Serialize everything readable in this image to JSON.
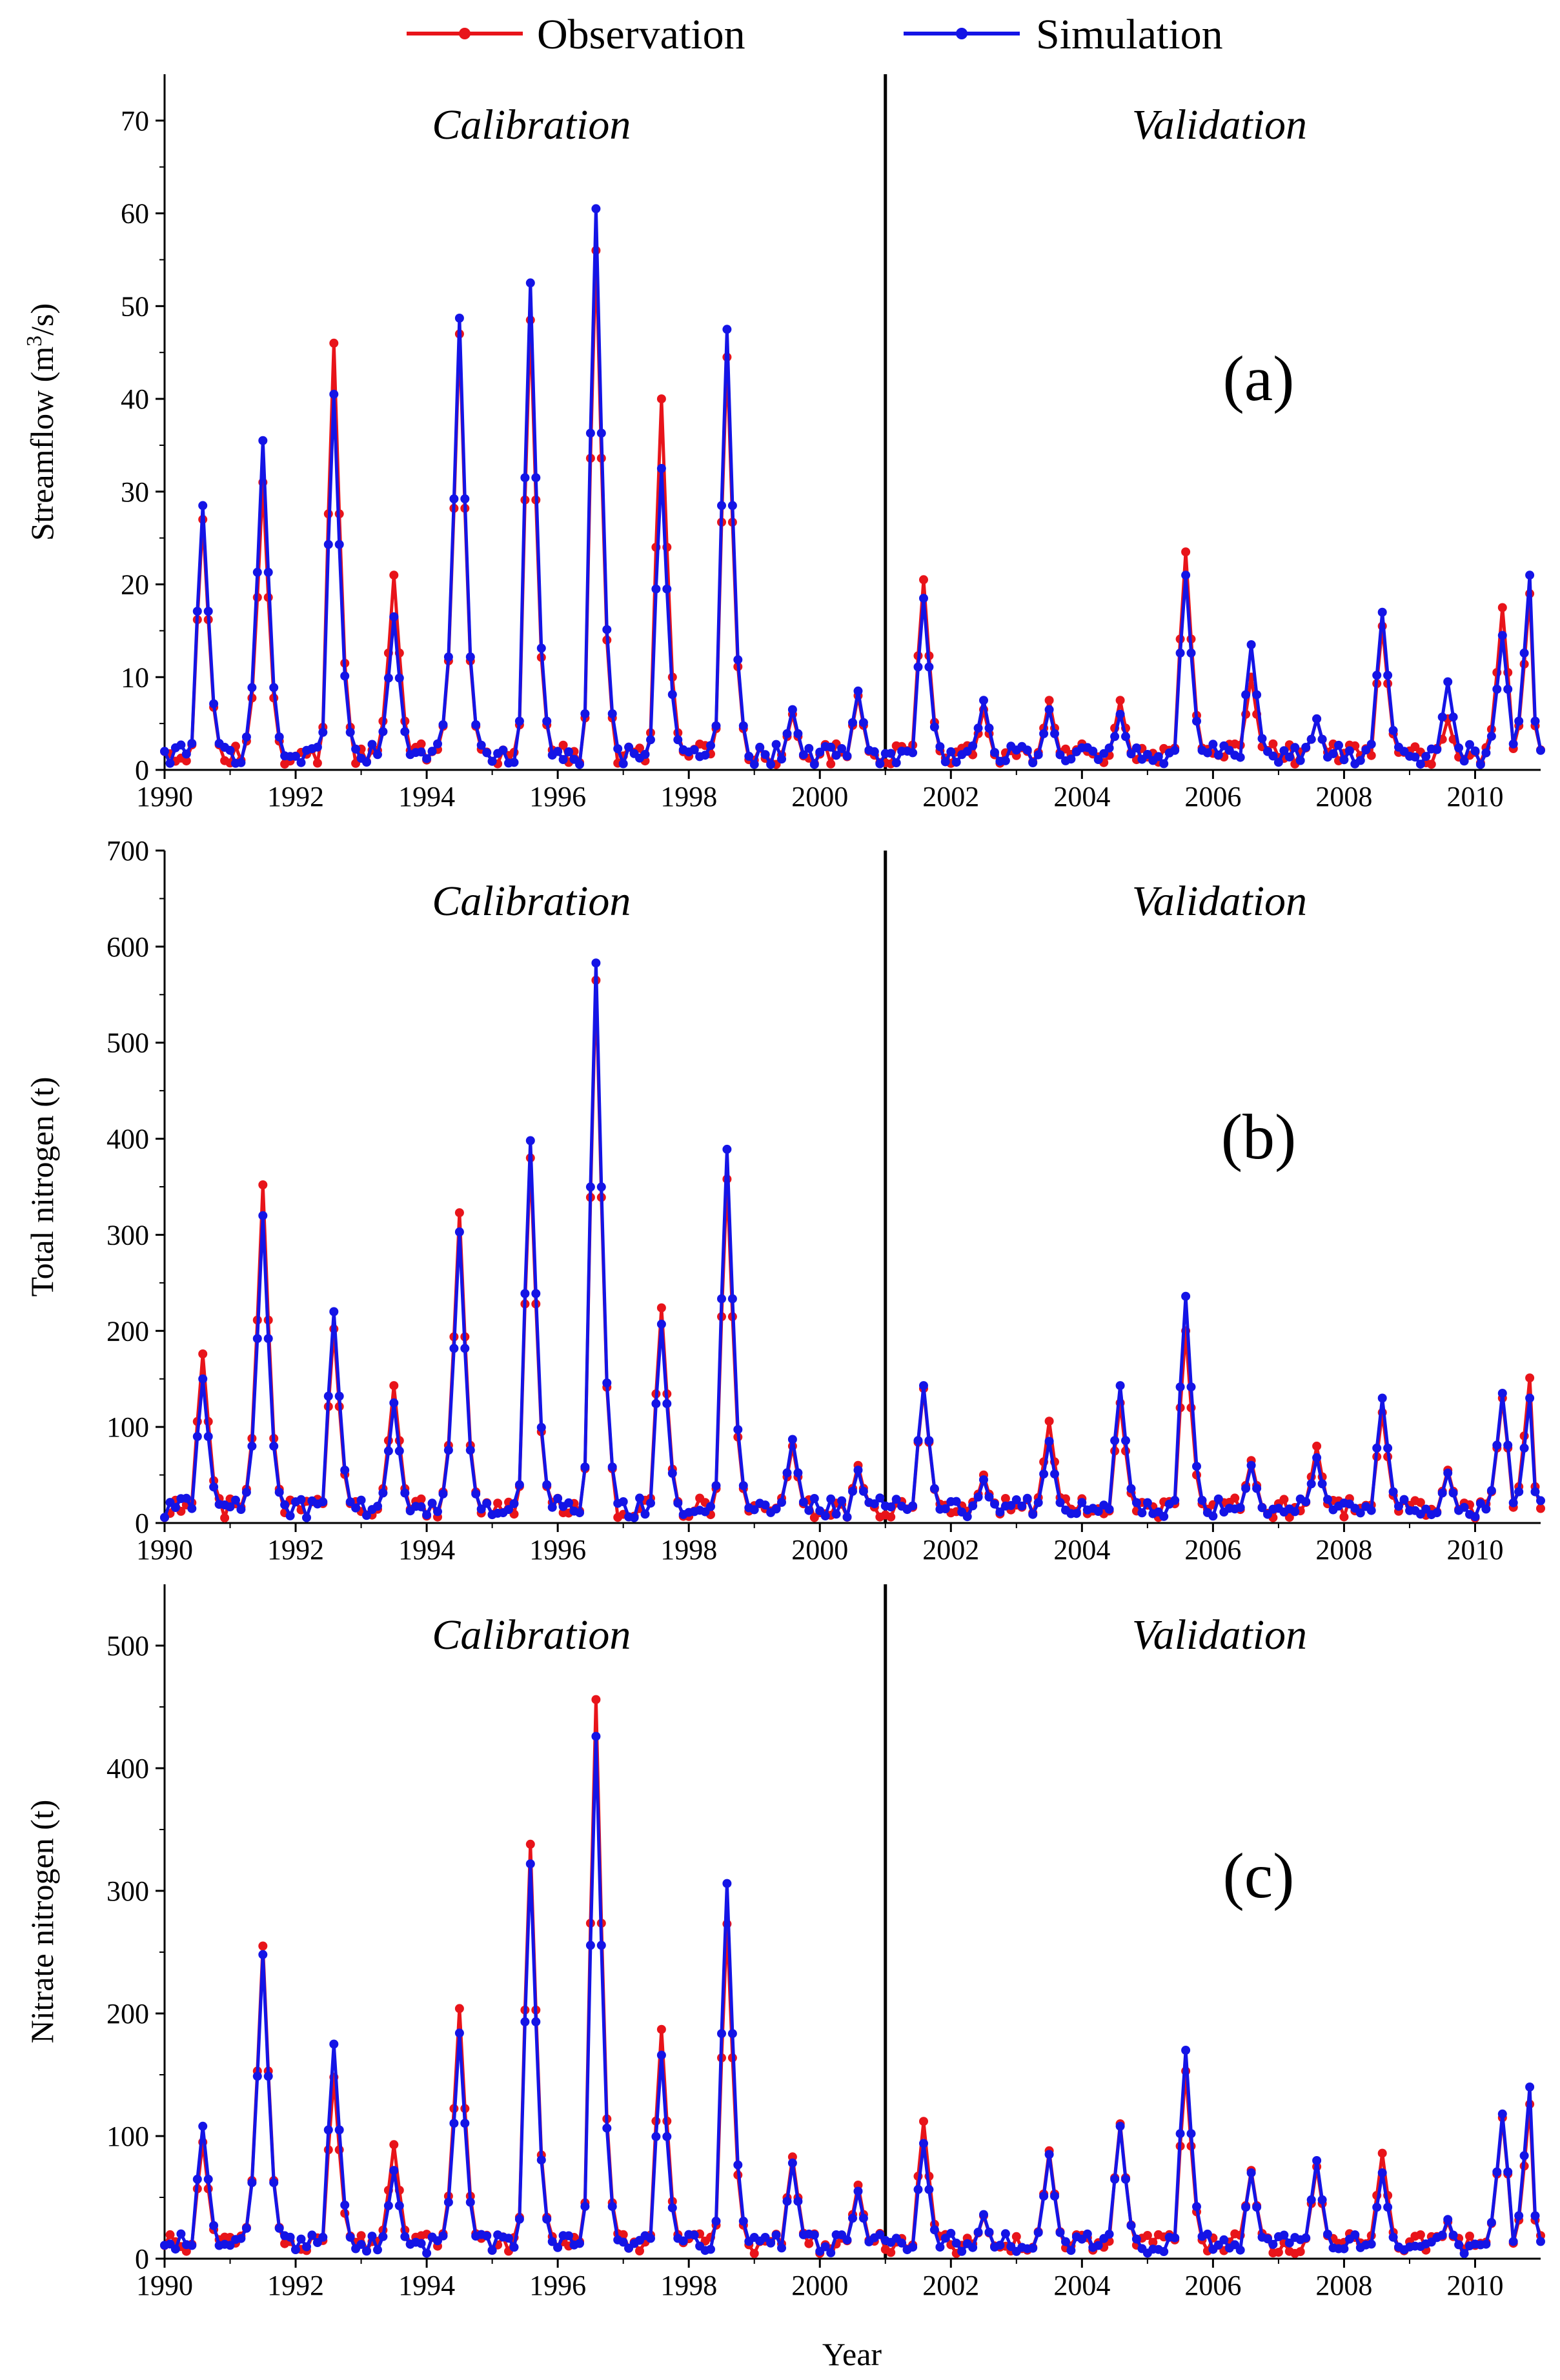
{
  "legend": {
    "observation": "Observation",
    "simulation": "Simulation"
  },
  "colors": {
    "observation": "#e8141a",
    "simulation": "#1414e6"
  },
  "x_axis_title": "Year",
  "chart_data": [
    {
      "type": "line",
      "panel": "(a)",
      "ylabel_main": "Streamflow (m",
      "ylabel_sup": "3",
      "ylabel_tail": "/s)",
      "ylim": [
        0,
        75
      ],
      "yticks": [
        0,
        10,
        20,
        30,
        40,
        50,
        60,
        70
      ],
      "xlim": [
        1990,
        2011
      ],
      "xticks": [
        1990,
        1992,
        1994,
        1996,
        1998,
        2000,
        2002,
        2004,
        2006,
        2008,
        2010
      ],
      "split_year": 2001,
      "period_labels": [
        "Calibration",
        "Validation"
      ],
      "series": [
        {
          "name": "Observation",
          "peaks": [
            [
              1990.6,
              27
            ],
            [
              1991.5,
              31
            ],
            [
              1992.6,
              46
            ],
            [
              1993.5,
              21
            ],
            [
              1994.5,
              47
            ],
            [
              1995.6,
              48.5
            ],
            [
              1996.6,
              56
            ],
            [
              1997.6,
              40
            ],
            [
              1998.6,
              44.5
            ],
            [
              1999.6,
              6
            ],
            [
              2000.6,
              8
            ],
            [
              2001.6,
              20.5
            ],
            [
              2002.5,
              6.5
            ],
            [
              2003.5,
              7.5
            ],
            [
              2004.6,
              7.5
            ],
            [
              2005.6,
              23.5
            ],
            [
              2006.6,
              10
            ],
            [
              2007.6,
              5.5
            ],
            [
              2008.6,
              15.5
            ],
            [
              2009.6,
              5.5
            ],
            [
              2010.4,
              17.5
            ],
            [
              2010.8,
              19
            ]
          ]
        },
        {
          "name": "Simulation",
          "peaks": [
            [
              1990.6,
              28.5
            ],
            [
              1991.5,
              35.5
            ],
            [
              1992.6,
              40.5
            ],
            [
              1993.5,
              16.5
            ],
            [
              1994.5,
              48.7
            ],
            [
              1995.6,
              52.5
            ],
            [
              1996.6,
              60.5
            ],
            [
              1997.6,
              32.5
            ],
            [
              1998.6,
              47.5
            ],
            [
              1999.6,
              6.5
            ],
            [
              2000.6,
              8.5
            ],
            [
              2001.6,
              18.5
            ],
            [
              2002.5,
              7.5
            ],
            [
              2003.5,
              6.5
            ],
            [
              2004.6,
              6
            ],
            [
              2005.6,
              21
            ],
            [
              2006.6,
              13.5
            ],
            [
              2007.6,
              5.5
            ],
            [
              2008.6,
              17
            ],
            [
              2009.6,
              9.5
            ],
            [
              2010.4,
              14.5
            ],
            [
              2010.8,
              21
            ]
          ]
        }
      ]
    },
    {
      "type": "line",
      "panel": "(b)",
      "ylabel_main": "Total nitrogen (t)",
      "ylim": [
        0,
        700
      ],
      "yticks": [
        0,
        100,
        200,
        300,
        400,
        500,
        600,
        700
      ],
      "xlim": [
        1990,
        2011
      ],
      "xticks": [
        1990,
        1992,
        1994,
        1996,
        1998,
        2000,
        2002,
        2004,
        2006,
        2008,
        2010
      ],
      "split_year": 2001,
      "period_labels": [
        "Calibration",
        "Validation"
      ],
      "series": [
        {
          "name": "Observation",
          "peaks": [
            [
              1990.6,
              176
            ],
            [
              1991.5,
              352
            ],
            [
              1992.6,
              202
            ],
            [
              1993.5,
              143
            ],
            [
              1994.5,
              323
            ],
            [
              1995.6,
              380
            ],
            [
              1996.6,
              565
            ],
            [
              1997.6,
              224
            ],
            [
              1998.6,
              358
            ],
            [
              1999.6,
              80
            ],
            [
              2000.6,
              60
            ],
            [
              2001.6,
              140
            ],
            [
              2002.5,
              50
            ],
            [
              2003.5,
              106
            ],
            [
              2004.6,
              125
            ],
            [
              2005.6,
              200
            ],
            [
              2006.6,
              65
            ],
            [
              2007.6,
              80
            ],
            [
              2008.6,
              115
            ],
            [
              2009.6,
              55
            ],
            [
              2010.4,
              130
            ],
            [
              2010.8,
              151
            ]
          ]
        },
        {
          "name": "Simulation",
          "peaks": [
            [
              1990.6,
              150
            ],
            [
              1991.5,
              320
            ],
            [
              1992.6,
              220
            ],
            [
              1993.5,
              125
            ],
            [
              1994.5,
              303
            ],
            [
              1995.6,
              398
            ],
            [
              1996.6,
              583
            ],
            [
              1997.6,
              207
            ],
            [
              1998.6,
              389
            ],
            [
              1999.6,
              87
            ],
            [
              2000.6,
              55
            ],
            [
              2001.6,
              143
            ],
            [
              2002.5,
              45
            ],
            [
              2003.5,
              85
            ],
            [
              2004.6,
              143
            ],
            [
              2005.6,
              236
            ],
            [
              2006.6,
              60
            ],
            [
              2007.6,
              68
            ],
            [
              2008.6,
              130
            ],
            [
              2009.6,
              52
            ],
            [
              2010.4,
              135
            ],
            [
              2010.8,
              130
            ]
          ]
        }
      ]
    },
    {
      "type": "line",
      "panel": "(c)",
      "ylabel_main": "Nitrate nitrogen (t)",
      "ylim": [
        0,
        550
      ],
      "yticks": [
        0,
        100,
        200,
        300,
        400,
        500
      ],
      "xlim": [
        1990,
        2011
      ],
      "xticks": [
        1990,
        1992,
        1994,
        1996,
        1998,
        2000,
        2002,
        2004,
        2006,
        2008,
        2010
      ],
      "split_year": 2001,
      "period_labels": [
        "Calibration",
        "Validation"
      ],
      "series": [
        {
          "name": "Observation",
          "peaks": [
            [
              1990.6,
              95
            ],
            [
              1991.5,
              255
            ],
            [
              1992.6,
              148
            ],
            [
              1993.5,
              93
            ],
            [
              1994.5,
              204
            ],
            [
              1995.6,
              338
            ],
            [
              1996.6,
              456
            ],
            [
              1997.6,
              187
            ],
            [
              1998.6,
              273
            ],
            [
              1999.6,
              83
            ],
            [
              2000.6,
              60
            ],
            [
              2001.6,
              112
            ],
            [
              2002.5,
              35
            ],
            [
              2003.5,
              88
            ],
            [
              2004.6,
              110
            ],
            [
              2005.6,
              153
            ],
            [
              2006.6,
              72
            ],
            [
              2007.6,
              75
            ],
            [
              2008.6,
              86
            ],
            [
              2009.6,
              30
            ],
            [
              2010.4,
              115
            ],
            [
              2010.8,
              126
            ]
          ]
        },
        {
          "name": "Simulation",
          "peaks": [
            [
              1990.6,
              108
            ],
            [
              1991.5,
              248
            ],
            [
              1992.6,
              175
            ],
            [
              1993.5,
              72
            ],
            [
              1994.5,
              184
            ],
            [
              1995.6,
              322
            ],
            [
              1996.6,
              426
            ],
            [
              1997.6,
              166
            ],
            [
              1998.6,
              306
            ],
            [
              1999.6,
              78
            ],
            [
              2000.6,
              55
            ],
            [
              2001.6,
              94
            ],
            [
              2002.5,
              36
            ],
            [
              2003.5,
              85
            ],
            [
              2004.6,
              108
            ],
            [
              2005.6,
              170
            ],
            [
              2006.6,
              70
            ],
            [
              2007.6,
              80
            ],
            [
              2008.6,
              70
            ],
            [
              2009.6,
              32
            ],
            [
              2010.4,
              118
            ],
            [
              2010.8,
              140
            ]
          ]
        }
      ]
    }
  ]
}
